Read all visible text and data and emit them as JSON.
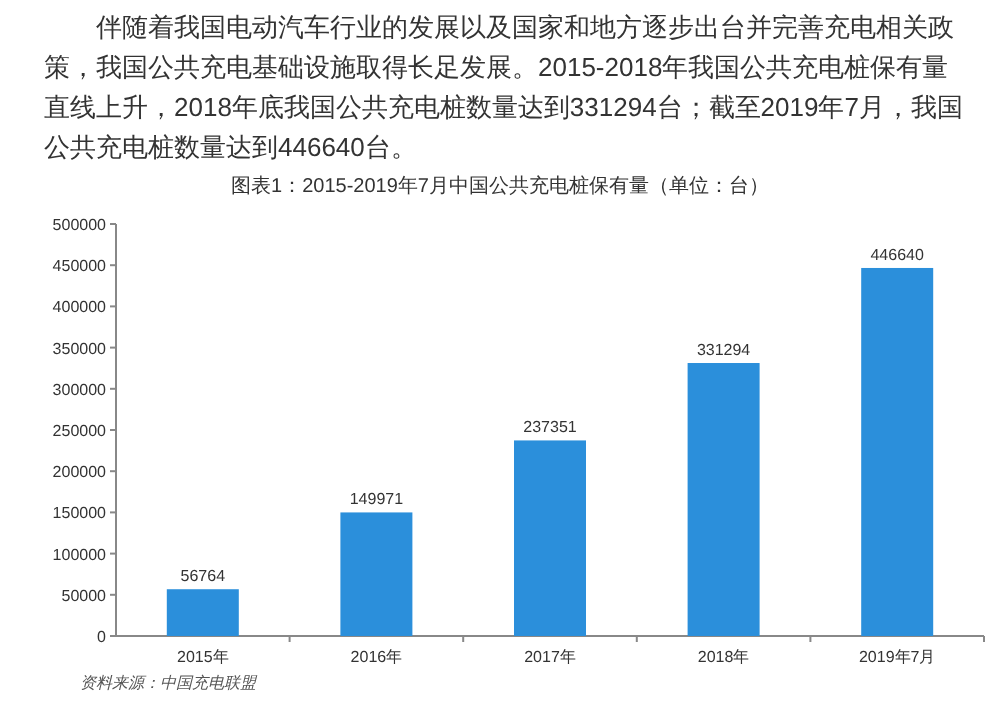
{
  "chart_data": {
    "type": "bar",
    "title": "图表1：2015-2019年7月中国公共充电桩保有量（单位：台）",
    "annotations": [
      "伴随着我国电动汽车行业的发展以及国家和地方逐步出台并完善充电相关政策，我国公共充电基础设施取得长足发展。2015-2018年我国公共充电桩保有量直线上升，2018年底我国公共充电桩数量达到331294台；截至2019年7月，我国公共充电桩数量达到446640台。",
      "资料来源：中国充电联盟"
    ],
    "categories": [
      "2015年",
      "2016年",
      "2017年",
      "2018年",
      "2019年7月"
    ],
    "values": [
      56764,
      149971,
      237351,
      331294,
      446640
    ],
    "color": "#2b8fdb",
    "ylim": [
      0,
      500000
    ],
    "yticks": [
      0,
      50000,
      100000,
      150000,
      200000,
      250000,
      300000,
      350000,
      400000,
      450000,
      500000
    ],
    "data_labels": true
  }
}
